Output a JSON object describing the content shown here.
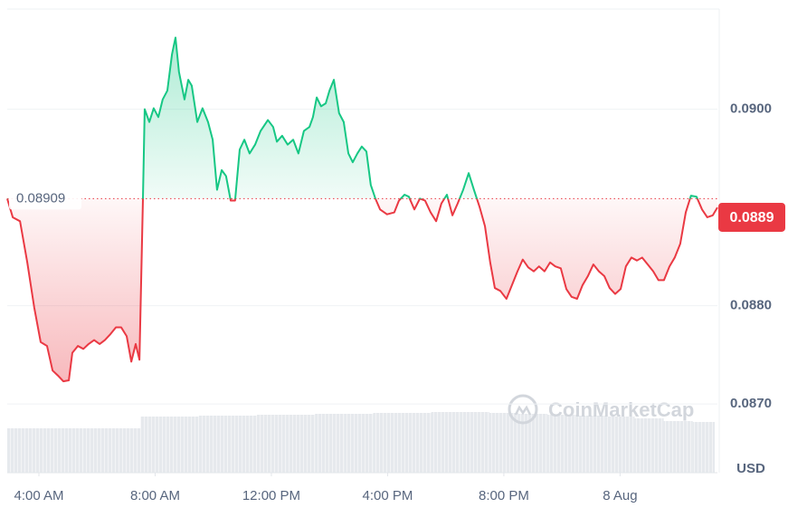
{
  "chart_data": {
    "type": "line",
    "x": [
      2.91,
      3.1,
      3.35,
      3.6,
      3.84,
      4.06,
      4.28,
      4.47,
      4.65,
      4.84,
      5.03,
      5.15,
      5.34,
      5.53,
      5.71,
      5.9,
      6.09,
      6.27,
      6.46,
      6.65,
      6.83,
      7.02,
      7.18,
      7.33,
      7.46,
      7.58,
      7.64,
      7.8,
      7.95,
      8.11,
      8.26,
      8.42,
      8.58,
      8.7,
      8.82,
      9.01,
      9.14,
      9.26,
      9.45,
      9.63,
      9.82,
      9.98,
      10.13,
      10.29,
      10.44,
      10.6,
      10.75,
      10.91,
      11.07,
      11.25,
      11.44,
      11.63,
      11.88,
      12.06,
      12.19,
      12.37,
      12.56,
      12.75,
      12.93,
      13.12,
      13.31,
      13.43,
      13.56,
      13.71,
      13.87,
      14.0,
      14.15,
      14.33,
      14.49,
      14.65,
      14.8,
      14.96,
      15.11,
      15.27,
      15.42,
      15.58,
      15.74,
      15.98,
      16.23,
      16.39,
      16.58,
      16.73,
      16.92,
      17.11,
      17.29,
      17.48,
      17.67,
      17.85,
      18.04,
      18.23,
      18.41,
      18.6,
      18.79,
      18.97,
      19.16,
      19.35,
      19.53,
      19.69,
      19.88,
      20.09,
      20.28,
      20.47,
      20.65,
      20.84,
      21.03,
      21.21,
      21.4,
      21.59,
      21.77,
      21.96,
      22.15,
      22.33,
      22.52,
      22.71,
      22.89,
      23.08,
      23.27,
      23.46,
      23.64,
      23.83,
      24.02,
      24.2,
      24.39,
      24.58,
      24.76,
      24.95,
      25.14,
      25.32,
      25.51,
      25.7,
      25.88,
      26.07,
      26.26,
      26.44,
      26.63,
      26.82,
      27.0,
      27.19,
      27.35
    ],
    "series": [
      {
        "values": [
          0.08909,
          0.0889,
          0.08886,
          0.08844,
          0.08798,
          0.08763,
          0.08759,
          0.08734,
          0.08729,
          0.08723,
          0.08724,
          0.08752,
          0.08759,
          0.08756,
          0.08761,
          0.08765,
          0.08761,
          0.08765,
          0.08771,
          0.08778,
          0.08778,
          0.08769,
          0.08743,
          0.08761,
          0.08745,
          0.08909,
          0.09,
          0.08987,
          0.09001,
          0.08992,
          0.0901,
          0.09019,
          0.09056,
          0.09073,
          0.09038,
          0.0901,
          0.0903,
          0.09024,
          0.08987,
          0.09001,
          0.08987,
          0.08969,
          0.08918,
          0.08938,
          0.08932,
          0.08907,
          0.08907,
          0.08959,
          0.08969,
          0.08955,
          0.08964,
          0.08978,
          0.08989,
          0.08982,
          0.08967,
          0.08973,
          0.08964,
          0.08969,
          0.08955,
          0.08978,
          0.08982,
          0.08992,
          0.09012,
          0.09003,
          0.09006,
          0.09019,
          0.0903,
          0.08996,
          0.08987,
          0.08955,
          0.08946,
          0.08955,
          0.08962,
          0.08957,
          0.08923,
          0.08909,
          0.08898,
          0.08893,
          0.08895,
          0.08907,
          0.08913,
          0.08911,
          0.08898,
          0.08909,
          0.08907,
          0.08895,
          0.08886,
          0.08904,
          0.08913,
          0.08892,
          0.08904,
          0.08918,
          0.08935,
          0.08918,
          0.08901,
          0.08881,
          0.08844,
          0.08818,
          0.08815,
          0.08807,
          0.08821,
          0.08835,
          0.08847,
          0.08839,
          0.08835,
          0.0884,
          0.08835,
          0.08844,
          0.0884,
          0.08838,
          0.08817,
          0.08809,
          0.08807,
          0.08821,
          0.0883,
          0.08842,
          0.08835,
          0.0883,
          0.08818,
          0.08812,
          0.08817,
          0.0884,
          0.08849,
          0.08846,
          0.08849,
          0.08842,
          0.08835,
          0.08826,
          0.08826,
          0.0884,
          0.08849,
          0.08863,
          0.08895,
          0.08912,
          0.08911,
          0.08898,
          0.0889,
          0.08892,
          0.089
        ],
        "up_color": "#16c784",
        "down_color": "#ea3943"
      }
    ],
    "reference": 0.08909,
    "current_price": 0.0889,
    "volume": {
      "x": [
        3,
        4,
        5,
        6,
        7,
        8,
        9,
        10,
        11,
        12,
        13,
        14,
        15,
        16,
        17,
        18,
        19,
        20,
        21,
        22,
        23,
        24,
        25,
        26,
        27
      ],
      "values": [
        49,
        49,
        49,
        49,
        49,
        62,
        62,
        63,
        63,
        64,
        64,
        65,
        65,
        66,
        66,
        67,
        67,
        66,
        65,
        64,
        63,
        62,
        60,
        57,
        56
      ],
      "color": "#e3e6ea"
    },
    "xlim": [
      2.91,
      27.35
    ],
    "ylim": [
      0.0863,
      0.09102
    ],
    "xticks": [
      {
        "value": 4,
        "label": "4:00 AM"
      },
      {
        "value": 8,
        "label": "8:00 AM"
      },
      {
        "value": 12,
        "label": "12:00 PM"
      },
      {
        "value": 16,
        "label": "4:00 PM"
      },
      {
        "value": 20,
        "label": "8:00 PM"
      },
      {
        "value": 24,
        "label": "8 Aug"
      }
    ],
    "yticks": [
      {
        "value": 0.087,
        "label": "0.0870"
      },
      {
        "value": 0.088,
        "label": "0.0880"
      },
      {
        "value": 0.09,
        "label": "0.0900"
      }
    ],
    "y_unit": "USD",
    "watermark": "CoinMarketCap",
    "grid": true
  }
}
